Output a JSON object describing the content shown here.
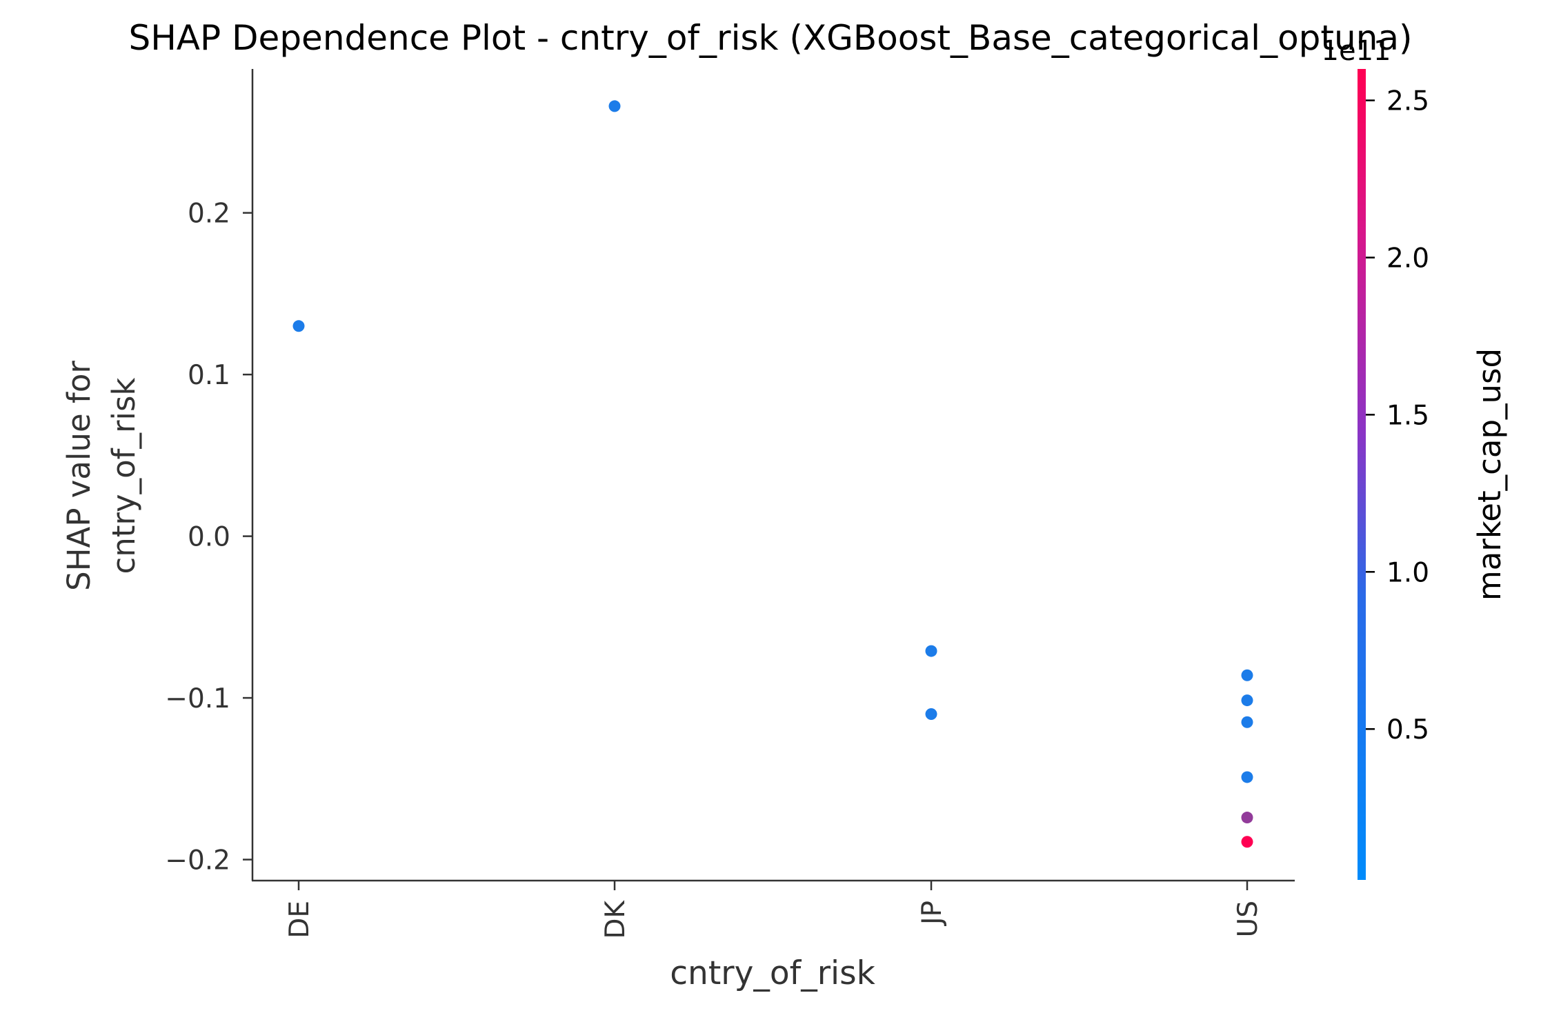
{
  "chart_data": {
    "type": "scatter",
    "title": "SHAP Dependence Plot - cntry_of_risk (XGBoost_Base_categorical_optuna)",
    "xlabel": "cntry_of_risk",
    "ylabel_lines": [
      "SHAP value for",
      "cntry_of_risk"
    ],
    "categories": [
      "DE",
      "DK",
      "JP",
      "US"
    ],
    "ylim": [
      -0.213,
      0.289
    ],
    "yticks": [
      0.2,
      0.1,
      0.0,
      -0.1,
      -0.2
    ],
    "ytick_labels": [
      "0.2",
      "0.1",
      "0.0",
      "−0.1",
      "−0.2"
    ],
    "grid": false,
    "points": [
      {
        "x": "DE",
        "y": 0.13,
        "market_cap_usd": 30000000000.0
      },
      {
        "x": "DK",
        "y": 0.266,
        "market_cap_usd": 30000000000.0
      },
      {
        "x": "JP",
        "y": -0.071,
        "market_cap_usd": 30000000000.0
      },
      {
        "x": "JP",
        "y": -0.11,
        "market_cap_usd": 30000000000.0
      },
      {
        "x": "US",
        "y": -0.086,
        "market_cap_usd": 30000000000.0
      },
      {
        "x": "US",
        "y": -0.1015,
        "market_cap_usd": 30000000000.0
      },
      {
        "x": "US",
        "y": -0.115,
        "market_cap_usd": 30000000000.0
      },
      {
        "x": "US",
        "y": -0.149,
        "market_cap_usd": 30000000000.0
      },
      {
        "x": "US",
        "y": -0.174,
        "market_cap_usd": 150000000000.0
      },
      {
        "x": "US",
        "y": -0.189,
        "market_cap_usd": 260000000000.0
      }
    ],
    "colorbar": {
      "label": "market_cap_usd",
      "offset_label": "1e11",
      "range": [
        0.02,
        2.6
      ],
      "ticks": [
        0.5,
        1.0,
        1.5,
        2.0,
        2.5
      ],
      "tick_labels": [
        "0.5",
        "1.0",
        "1.5",
        "2.0",
        "2.5"
      ],
      "colors": [
        "#008bfb",
        "#ff0052"
      ]
    }
  }
}
